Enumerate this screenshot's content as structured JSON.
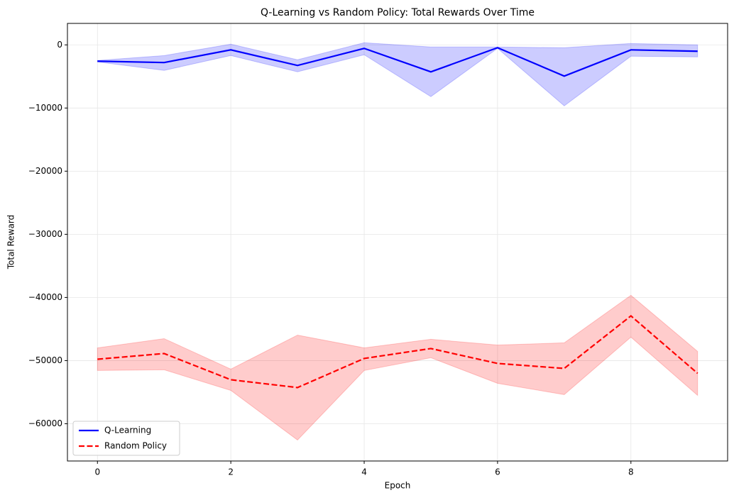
{
  "chart_data": {
    "type": "line",
    "title": "Q-Learning vs Random Policy: Total Rewards Over Time",
    "x_label": "Epoch",
    "y_label": "Total Reward",
    "x": [
      0,
      1,
      2,
      3,
      4,
      5,
      6,
      7,
      8,
      9
    ],
    "series": [
      {
        "name": "Q-Learning",
        "color": "#0000ff",
        "dash": "solid",
        "values": [
          -2580,
          -2800,
          -790,
          -3260,
          -560,
          -4270,
          -450,
          -4940,
          -790,
          -1010
        ],
        "upper": [
          -2470,
          -1690,
          110,
          -2360,
          340,
          -340,
          -340,
          -450,
          220,
          0
        ],
        "lower": [
          -2700,
          -4040,
          -1690,
          -4270,
          -1570,
          -8200,
          -560,
          -9660,
          -1800,
          -1910
        ]
      },
      {
        "name": "Random Policy",
        "color": "#ff0000",
        "dash": "dashed",
        "values": [
          -49780,
          -48880,
          -53030,
          -54270,
          -49660,
          -48090,
          -50450,
          -51240,
          -42920,
          -52020
        ],
        "upper": [
          -47980,
          -46520,
          -51350,
          -45960,
          -47980,
          -46630,
          -47530,
          -47190,
          -39660,
          -48540
        ],
        "lower": [
          -51570,
          -51460,
          -54720,
          -62580,
          -51570,
          -49550,
          -53600,
          -55390,
          -46290,
          -55510
        ]
      }
    ],
    "xlim": [
      -0.45,
      9.45
    ],
    "ylim": [
      -65900,
      3400
    ],
    "xticks": [
      0,
      2,
      4,
      6,
      8
    ],
    "yticks": [
      0,
      {
        "value": -10000,
        "label": "−10000"
      },
      {
        "value": -20000,
        "label": "−20000"
      },
      {
        "value": -30000,
        "label": "−30000"
      },
      {
        "value": -40000,
        "label": "−40000"
      },
      {
        "value": -50000,
        "label": "−50000"
      },
      {
        "value": -60000,
        "label": "−60000"
      }
    ],
    "grid": true,
    "legend": "lower-left"
  }
}
